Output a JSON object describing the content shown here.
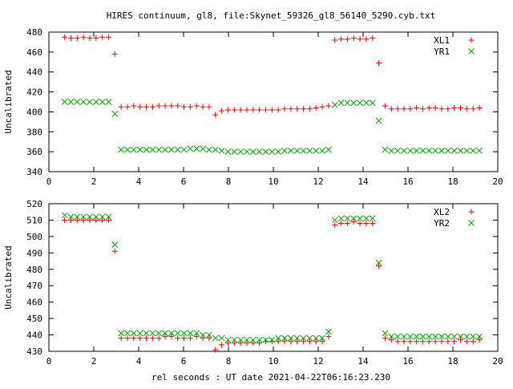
{
  "title": "HIRES continuum, gl8, file:Skynet_59326_gl8_56140_5290.cyb.txt",
  "xlabel": "rel seconds : UT date 2021-04-22T06:16:23.230",
  "colors": {
    "red": "#ff0000",
    "green": "#00a000"
  },
  "chart_data": [
    {
      "type": "scatter",
      "ylabel": "Uncalibrated",
      "xlim": [
        0,
        20
      ],
      "ylim": [
        340,
        480
      ],
      "xticks": [
        "0",
        "2",
        "4",
        "6",
        "8",
        "10",
        "12",
        "14",
        "16",
        "18",
        "20"
      ],
      "yticks": [
        "340",
        "360",
        "380",
        "400",
        "420",
        "440",
        "460",
        "480"
      ],
      "legend_position": "top-right",
      "x": [
        0.7,
        0.98,
        1.26,
        1.54,
        1.82,
        2.1,
        2.38,
        2.66,
        2.94,
        3.22,
        3.5,
        3.78,
        4.06,
        4.34,
        4.62,
        4.9,
        5.18,
        5.46,
        5.74,
        6.02,
        6.3,
        6.58,
        6.86,
        7.14,
        7.42,
        7.7,
        7.98,
        8.26,
        8.54,
        8.82,
        9.1,
        9.38,
        9.66,
        9.94,
        10.22,
        10.5,
        10.78,
        11.06,
        11.34,
        11.62,
        11.9,
        12.18,
        12.46,
        12.74,
        13.02,
        13.3,
        13.58,
        13.86,
        14.14,
        14.42,
        14.7,
        14.98,
        15.26,
        15.54,
        15.82,
        16.1,
        16.38,
        16.66,
        16.94,
        17.22,
        17.5,
        17.78,
        18.06,
        18.34,
        18.62,
        18.9,
        19.18
      ],
      "series": [
        {
          "name": "XL1",
          "marker": "plus",
          "color": "#ff0000",
          "values": [
            475,
            474,
            474,
            475,
            474,
            474,
            475,
            475,
            458,
            405,
            405,
            406,
            405,
            405,
            405,
            406,
            406,
            406,
            406,
            405,
            405,
            406,
            405,
            405,
            397,
            401,
            402,
            402,
            402,
            402,
            402,
            402,
            402,
            402,
            402,
            403,
            403,
            403,
            403,
            403,
            404,
            405,
            406,
            472,
            473,
            473,
            474,
            473,
            473,
            474,
            449,
            406,
            403,
            403,
            403,
            403,
            404,
            403,
            404,
            404,
            403,
            403,
            404,
            404,
            403,
            403,
            404
          ]
        },
        {
          "name": "YR1",
          "marker": "cross",
          "color": "#00a000",
          "values": [
            410,
            410,
            410,
            410,
            410,
            410,
            410,
            410,
            398,
            362,
            362,
            362,
            362,
            362,
            362,
            362,
            362,
            362,
            362,
            362,
            363,
            363,
            363,
            362,
            362,
            361,
            360,
            360,
            360,
            360,
            360,
            360,
            360,
            360,
            360,
            361,
            361,
            361,
            361,
            361,
            361,
            361,
            362,
            407,
            409,
            409,
            409,
            409,
            409,
            409,
            391,
            362,
            361,
            361,
            361,
            361,
            361,
            361,
            361,
            361,
            361,
            361,
            361,
            361,
            361,
            361,
            361
          ]
        }
      ]
    },
    {
      "type": "scatter",
      "ylabel": "Uncalibrated",
      "xlim": [
        0,
        20
      ],
      "ylim": [
        430,
        520
      ],
      "xticks": [
        "0",
        "2",
        "4",
        "6",
        "8",
        "10",
        "12",
        "14",
        "16",
        "18",
        "20"
      ],
      "yticks": [
        "430",
        "440",
        "450",
        "460",
        "470",
        "480",
        "490",
        "500",
        "510",
        "520"
      ],
      "legend_position": "top-right",
      "x": [
        0.7,
        0.98,
        1.26,
        1.54,
        1.82,
        2.1,
        2.38,
        2.66,
        2.94,
        3.22,
        3.5,
        3.78,
        4.06,
        4.34,
        4.62,
        4.9,
        5.18,
        5.46,
        5.74,
        6.02,
        6.3,
        6.58,
        6.86,
        7.14,
        7.42,
        7.7,
        7.98,
        8.26,
        8.54,
        8.82,
        9.1,
        9.38,
        9.66,
        9.94,
        10.22,
        10.5,
        10.78,
        11.06,
        11.34,
        11.62,
        11.9,
        12.18,
        12.46,
        12.74,
        13.02,
        13.3,
        13.58,
        13.86,
        14.14,
        14.42,
        14.7,
        14.98,
        15.26,
        15.54,
        15.82,
        16.1,
        16.38,
        16.66,
        16.94,
        17.22,
        17.5,
        17.78,
        18.06,
        18.34,
        18.62,
        18.9,
        19.18
      ],
      "series": [
        {
          "name": "XL2",
          "marker": "plus",
          "color": "#ff0000",
          "values": [
            510,
            510,
            510,
            510,
            510,
            510,
            510,
            510,
            491,
            438,
            438,
            438,
            438,
            438,
            438,
            438,
            439,
            439,
            438,
            438,
            438,
            439,
            438,
            438,
            431,
            434,
            435,
            435,
            435,
            435,
            435,
            435,
            436,
            436,
            436,
            436,
            436,
            436,
            436,
            436,
            436,
            436,
            439,
            507,
            508,
            508,
            509,
            508,
            508,
            508,
            482,
            438,
            437,
            436,
            436,
            436,
            436,
            436,
            436,
            436,
            436,
            436,
            436,
            437,
            436,
            436,
            437
          ]
        },
        {
          "name": "YR2",
          "marker": "cross",
          "color": "#00a000",
          "values": [
            513,
            512,
            512,
            512,
            512,
            512,
            512,
            512,
            495,
            441,
            441,
            441,
            441,
            441,
            441,
            441,
            441,
            441,
            441,
            441,
            441,
            441,
            440,
            440,
            438,
            438,
            437,
            437,
            437,
            437,
            437,
            437,
            437,
            437,
            438,
            438,
            438,
            438,
            438,
            438,
            438,
            438,
            442,
            510,
            511,
            511,
            511,
            511,
            511,
            511,
            484,
            441,
            439,
            439,
            439,
            439,
            439,
            439,
            439,
            439,
            439,
            439,
            439,
            439,
            439,
            439,
            439
          ]
        }
      ]
    }
  ]
}
